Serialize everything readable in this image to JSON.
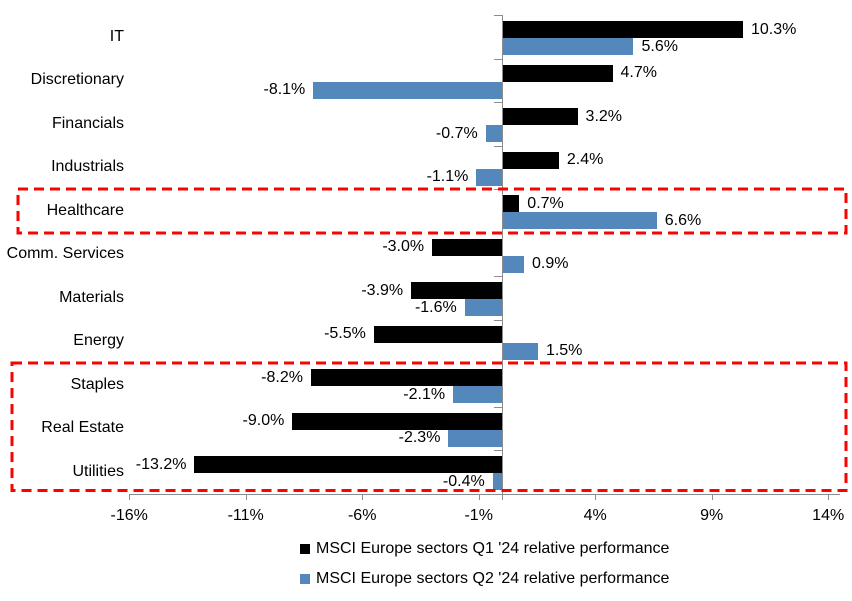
{
  "chart_data": {
    "type": "bar",
    "orientation": "horizontal",
    "categories": [
      "IT",
      "Discretionary",
      "Financials",
      "Industrials",
      "Healthcare",
      "Comm. Services",
      "Materials",
      "Energy",
      "Staples",
      "Real Estate",
      "Utilities"
    ],
    "series": [
      {
        "name": "MSCI Europe sectors Q1 '24 relative performance",
        "color": "#000000",
        "values": [
          10.3,
          4.7,
          3.2,
          2.4,
          0.7,
          -3.0,
          -3.9,
          -5.5,
          -8.2,
          -9.0,
          -13.2
        ],
        "labels": [
          "10.3%",
          "4.7%",
          "3.2%",
          "2.4%",
          "0.7%",
          "-3.0%",
          "-3.9%",
          "-5.5%",
          "-8.2%",
          "-9.0%",
          "-13.2%"
        ]
      },
      {
        "name": "MSCI Europe sectors Q2 '24 relative performance",
        "color": "#5488BC",
        "values": [
          5.6,
          -8.1,
          -0.7,
          -1.1,
          6.6,
          0.9,
          -1.6,
          1.5,
          -2.1,
          -2.3,
          -0.4
        ],
        "labels": [
          "5.6%",
          "-8.1%",
          "-0.7%",
          "-1.1%",
          "6.6%",
          "0.9%",
          "-1.6%",
          "1.5%",
          "-2.1%",
          "-2.3%",
          "-0.4%"
        ]
      }
    ],
    "x_ticks": [
      {
        "value": -16,
        "label": "-16%"
      },
      {
        "value": -11,
        "label": "-11%"
      },
      {
        "value": -6,
        "label": "-6%"
      },
      {
        "value": -1,
        "label": "-1%"
      },
      {
        "value": 4,
        "label": "4%"
      },
      {
        "value": 9,
        "label": "9%"
      },
      {
        "value": 14,
        "label": "14%"
      }
    ],
    "xlim": [
      -16,
      14
    ],
    "grid": false,
    "legend_position": "bottom",
    "title": "",
    "xlabel": "",
    "ylabel": "",
    "highlight_color": "#FF0000",
    "highlights": [
      {
        "categories": [
          "Healthcare"
        ]
      },
      {
        "categories": [
          "Staples",
          "Real Estate",
          "Utilities"
        ]
      }
    ]
  }
}
